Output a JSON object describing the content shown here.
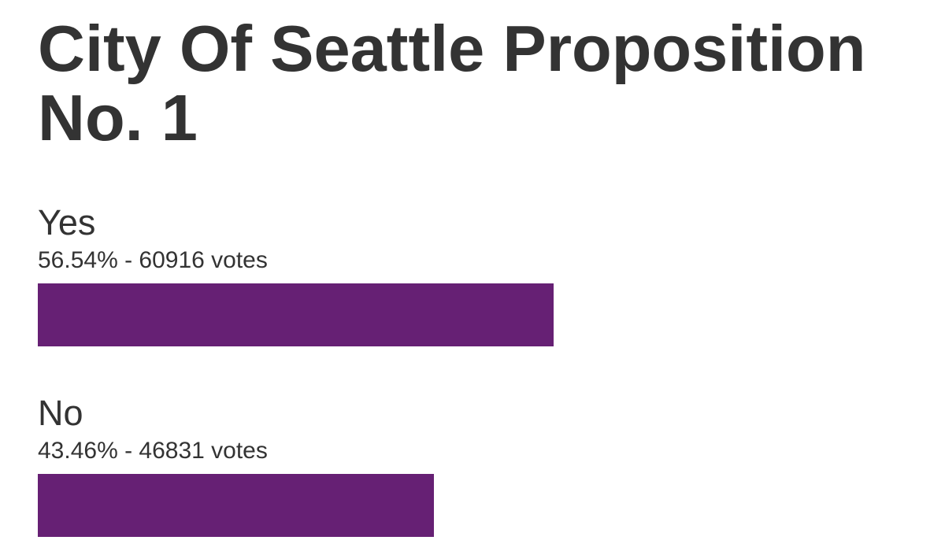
{
  "title": "City Of Seattle Proposition No. 1",
  "colors": {
    "bar": "#662074",
    "text": "#333333"
  },
  "chart_data": {
    "type": "bar",
    "orientation": "horizontal",
    "title": "City Of Seattle Proposition No. 1",
    "categories": [
      "Yes",
      "No"
    ],
    "values": [
      56.54,
      43.46
    ],
    "unit": "%",
    "xlim": [
      0,
      95
    ],
    "grid": false,
    "items": [
      {
        "label": "Yes",
        "percent": 56.54,
        "votes": 60916,
        "stats_text": "56.54% - 60916 votes"
      },
      {
        "label": "No",
        "percent": 43.46,
        "votes": 46831,
        "stats_text": "43.46% - 46831 votes"
      }
    ]
  }
}
